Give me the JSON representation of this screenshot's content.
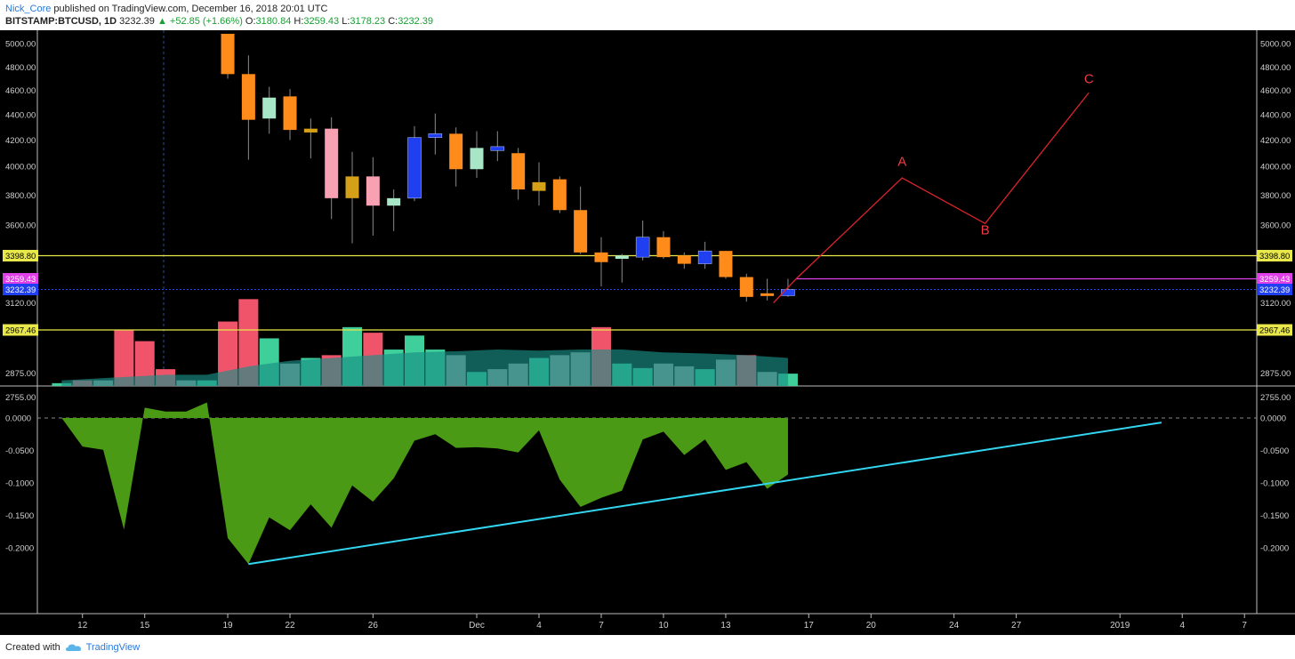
{
  "header": {
    "author": "Nick_Core",
    "published": "published on TradingView.com, December 16, 2018 20:01 UTC",
    "symbol": "BITSTAMP:BTCUSD, 1D",
    "last_price": "3232.39",
    "change": "▲ +52.85 (+1.66%)",
    "open_label": "O:",
    "open": "3180.84",
    "high_label": "H:",
    "high": "3259.43",
    "low_label": "L:",
    "low": "3178.23",
    "close_label": "C:",
    "close": "3232.39"
  },
  "footer": {
    "created_with": "Created with",
    "brand": "TradingView"
  },
  "colors": {
    "background": "#000000",
    "candle_orange": "#ff8c1a",
    "candle_pink": "#f7a1b2",
    "candle_mint": "#a8e6c8",
    "candle_blue": "#1f3ff0",
    "candle_gold": "#d4a017",
    "volume_red": "#f0546a",
    "volume_green": "#3ecf9b",
    "volume_grey": "#9b9b9b",
    "volume_ma": "#1a8f86",
    "oscillator_fill": "#4a9a16",
    "trendline": "#33d6f0",
    "abc_projection": "#d8242c",
    "level_yellow": "#e8e84a",
    "level_magenta": "#e040e8",
    "level_blue": "#1f3ff0"
  },
  "chart_data": [
    {
      "type": "candlestick",
      "title": "BITSTAMP:BTCUSD, 1D",
      "ylim": [
        2700,
        5080
      ],
      "y_ticks": [
        "5000.00",
        "4800.00",
        "4600.00",
        "4400.00",
        "4200.00",
        "4000.00",
        "3800.00",
        "3600.00",
        "3120.00",
        "2875.00",
        "2755.00"
      ],
      "x_ticks": [
        "12",
        "15",
        "19",
        "22",
        "26",
        "Dec",
        "4",
        "7",
        "10",
        "13",
        "17",
        "20",
        "24",
        "27",
        "2019",
        "4",
        "7"
      ],
      "x_tick_days": [
        -19,
        -16,
        -12,
        -9,
        -5,
        0,
        3,
        6,
        9,
        12,
        16,
        19,
        23,
        26,
        31,
        34,
        37
      ],
      "candles": [
        {
          "day": -12,
          "open": 5080,
          "high": 5080,
          "low": 4700,
          "close": 4740,
          "color": "orange"
        },
        {
          "day": -11,
          "open": 4740,
          "high": 4900,
          "low": 4050,
          "close": 4360,
          "color": "orange"
        },
        {
          "day": -10,
          "open": 4370,
          "high": 4630,
          "low": 4250,
          "close": 4540,
          "color": "mint"
        },
        {
          "day": -9,
          "open": 4550,
          "high": 4610,
          "low": 4200,
          "close": 4280,
          "color": "orange"
        },
        {
          "day": -8,
          "open": 4290,
          "high": 4370,
          "low": 4060,
          "close": 4260,
          "color": "gold"
        },
        {
          "day": -7,
          "open": 4290,
          "high": 4380,
          "low": 3640,
          "close": 3780,
          "color": "pink"
        },
        {
          "day": -6,
          "open": 3780,
          "high": 4110,
          "low": 3480,
          "close": 3930,
          "color": "gold"
        },
        {
          "day": -5,
          "open": 3930,
          "high": 4070,
          "low": 3530,
          "close": 3730,
          "color": "pink"
        },
        {
          "day": -4,
          "open": 3730,
          "high": 3840,
          "low": 3560,
          "close": 3780,
          "color": "mint"
        },
        {
          "day": -3,
          "open": 3780,
          "high": 4310,
          "low": 3760,
          "close": 4220,
          "color": "blue"
        },
        {
          "day": -2,
          "open": 4220,
          "high": 4410,
          "low": 4090,
          "close": 4250,
          "color": "blue"
        },
        {
          "day": -1,
          "open": 4250,
          "high": 4300,
          "low": 3860,
          "close": 3980,
          "color": "orange"
        },
        {
          "day": 0,
          "open": 3980,
          "high": 4270,
          "low": 3920,
          "close": 4140,
          "color": "mint"
        },
        {
          "day": 1,
          "open": 4120,
          "high": 4270,
          "low": 4040,
          "close": 4150,
          "color": "blue"
        },
        {
          "day": 2,
          "open": 4100,
          "high": 4140,
          "low": 3770,
          "close": 3840,
          "color": "orange"
        },
        {
          "day": 3,
          "open": 3890,
          "high": 4030,
          "low": 3730,
          "close": 3830,
          "color": "gold"
        },
        {
          "day": 4,
          "open": 3910,
          "high": 3930,
          "low": 3680,
          "close": 3700,
          "color": "orange"
        },
        {
          "day": 5,
          "open": 3700,
          "high": 3860,
          "low": 3410,
          "close": 3420,
          "color": "orange"
        },
        {
          "day": 6,
          "open": 3420,
          "high": 3520,
          "low": 3240,
          "close": 3360,
          "color": "orange"
        },
        {
          "day": 7,
          "open": 3380,
          "high": 3410,
          "low": 3250,
          "close": 3400,
          "color": "mint"
        },
        {
          "day": 8,
          "open": 3390,
          "high": 3630,
          "low": 3370,
          "close": 3520,
          "color": "blue"
        },
        {
          "day": 9,
          "open": 3520,
          "high": 3560,
          "low": 3380,
          "close": 3390,
          "color": "orange"
        },
        {
          "day": 10,
          "open": 3400,
          "high": 3420,
          "low": 3320,
          "close": 3350,
          "color": "orange"
        },
        {
          "day": 11,
          "open": 3350,
          "high": 3490,
          "low": 3320,
          "close": 3430,
          "color": "blue"
        },
        {
          "day": 12,
          "open": 3430,
          "high": 3430,
          "low": 3260,
          "close": 3270,
          "color": "orange"
        },
        {
          "day": 13,
          "open": 3270,
          "high": 3290,
          "low": 3130,
          "close": 3170,
          "color": "orange"
        },
        {
          "day": 14,
          "open": 3200,
          "high": 3260,
          "low": 3140,
          "close": 3180,
          "color": "orange"
        },
        {
          "day": 15,
          "open": 3180,
          "high": 3260,
          "low": 3170,
          "close": 3232,
          "color": "blue"
        }
      ],
      "volume": [
        {
          "day": -20,
          "v": 0.5,
          "c": "green"
        },
        {
          "day": -19,
          "v": 1,
          "c": "red"
        },
        {
          "day": -18,
          "v": 1,
          "c": "grey"
        },
        {
          "day": -17,
          "v": 10,
          "c": "red"
        },
        {
          "day": -16,
          "v": 8,
          "c": "red"
        },
        {
          "day": -15,
          "v": 3,
          "c": "red"
        },
        {
          "day": -14,
          "v": 1,
          "c": "grey"
        },
        {
          "day": -13,
          "v": 1,
          "c": "green"
        },
        {
          "day": -12,
          "v": 11.5,
          "c": "red"
        },
        {
          "day": -11,
          "v": 15.5,
          "c": "red"
        },
        {
          "day": -10,
          "v": 8.5,
          "c": "green"
        },
        {
          "day": -9,
          "v": 4,
          "c": "grey"
        },
        {
          "day": -8,
          "v": 5,
          "c": "green"
        },
        {
          "day": -7,
          "v": 5.5,
          "c": "red"
        },
        {
          "day": -6,
          "v": 10.5,
          "c": "green"
        },
        {
          "day": -5,
          "v": 9.5,
          "c": "red"
        },
        {
          "day": -4,
          "v": 6.5,
          "c": "green"
        },
        {
          "day": -3,
          "v": 9,
          "c": "green"
        },
        {
          "day": -2,
          "v": 6.5,
          "c": "green"
        },
        {
          "day": -1,
          "v": 5.5,
          "c": "grey"
        },
        {
          "day": 0,
          "v": 2.5,
          "c": "green"
        },
        {
          "day": 1,
          "v": 3,
          "c": "grey"
        },
        {
          "day": 2,
          "v": 4,
          "c": "grey"
        },
        {
          "day": 3,
          "v": 5,
          "c": "green"
        },
        {
          "day": 4,
          "v": 5.5,
          "c": "grey"
        },
        {
          "day": 5,
          "v": 6,
          "c": "grey"
        },
        {
          "day": 6,
          "v": 10.5,
          "c": "red"
        },
        {
          "day": 7,
          "v": 4,
          "c": "green"
        },
        {
          "day": 8,
          "v": 3.2,
          "c": "green"
        },
        {
          "day": 9,
          "v": 4,
          "c": "grey"
        },
        {
          "day": 10,
          "v": 3.5,
          "c": "grey"
        },
        {
          "day": 11,
          "v": 3,
          "c": "green"
        },
        {
          "day": 12,
          "v": 4.7,
          "c": "grey"
        },
        {
          "day": 13,
          "v": 5.5,
          "c": "red"
        },
        {
          "day": 14,
          "v": 2.5,
          "c": "grey"
        },
        {
          "day": 15,
          "v": 2.2,
          "c": "green"
        }
      ],
      "volume_ma": [
        {
          "day": -20,
          "v": 1
        },
        {
          "day": -15,
          "v": 2
        },
        {
          "day": -13,
          "v": 2
        },
        {
          "day": -11,
          "v": 3.5
        },
        {
          "day": -9,
          "v": 4.5
        },
        {
          "day": -7,
          "v": 5
        },
        {
          "day": -5,
          "v": 5.5
        },
        {
          "day": -3,
          "v": 6
        },
        {
          "day": -1,
          "v": 6.2
        },
        {
          "day": 1,
          "v": 6.5
        },
        {
          "day": 3,
          "v": 6.3
        },
        {
          "day": 5,
          "v": 6.5
        },
        {
          "day": 7,
          "v": 6.5
        },
        {
          "day": 9,
          "v": 6
        },
        {
          "day": 11,
          "v": 5.8
        },
        {
          "day": 13,
          "v": 5.5
        },
        {
          "day": 15,
          "v": 5
        }
      ],
      "price_labels": [
        {
          "value": 3398.8,
          "text": "3398.80",
          "style": "yellow"
        },
        {
          "value": 3259.43,
          "text": "3259.43",
          "style": "magenta"
        },
        {
          "value": 3232.39,
          "text": "3232.39",
          "style": "blue"
        },
        {
          "value": 2967.46,
          "text": "2967.46",
          "style": "yellow"
        }
      ],
      "annotations": {
        "abc_path": [
          {
            "day": 14.3,
            "price": 3120
          },
          {
            "day": 15.4,
            "price": 3260
          },
          {
            "day": 20.5,
            "price": 3920
          },
          {
            "day": 24.5,
            "price": 3610
          },
          {
            "day": 29.5,
            "price": 4580
          }
        ],
        "labels": [
          {
            "text": "A",
            "day": 20.5,
            "price": 4005
          },
          {
            "text": "B",
            "day": 24.5,
            "price": 3540
          },
          {
            "text": "C",
            "day": 29.5,
            "price": 4660
          }
        ]
      }
    },
    {
      "type": "area",
      "ylim": [
        -0.24,
        0.03
      ],
      "y_ticks": [
        "0.0000",
        "-0.0500",
        "-0.1000",
        "-0.1500",
        "-0.2000"
      ],
      "x": [
        -20,
        -19,
        -18,
        -17,
        -16,
        -15,
        -14,
        -13,
        -12,
        -11,
        -10,
        -9,
        -8,
        -7,
        -6,
        -5,
        -4,
        -3,
        -2,
        -1,
        0,
        1,
        2,
        3,
        4,
        5,
        6,
        7,
        8,
        9,
        10,
        11,
        12,
        13,
        14,
        15
      ],
      "values": [
        0,
        -0.044,
        -0.049,
        -0.172,
        0.016,
        0.01,
        0.01,
        0.024,
        -0.185,
        -0.225,
        -0.153,
        -0.173,
        -0.133,
        -0.169,
        -0.104,
        -0.129,
        -0.093,
        -0.035,
        -0.025,
        -0.046,
        -0.045,
        -0.047,
        -0.053,
        -0.019,
        -0.095,
        -0.137,
        -0.123,
        -0.112,
        -0.033,
        -0.021,
        -0.057,
        -0.033,
        -0.08,
        -0.068,
        -0.109,
        -0.087
      ],
      "trendline": [
        {
          "day": -11,
          "value": -0.225
        },
        {
          "day": 33,
          "value": -0.007
        }
      ]
    }
  ]
}
